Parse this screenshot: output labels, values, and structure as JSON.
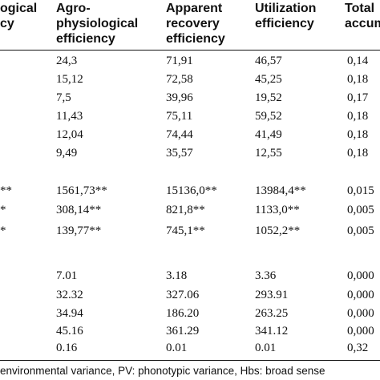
{
  "header": {
    "col0": [
      "ogical",
      "cy"
    ],
    "col1": [
      "Agro-",
      "physiological",
      "efficiency"
    ],
    "col2": [
      "Apparent",
      "recovery",
      "efficiency"
    ],
    "col3": [
      "Utilization",
      "efficiency"
    ],
    "col4": [
      "Total",
      "accum"
    ]
  },
  "rows": [
    {
      "c0": "",
      "c1": "24,3",
      "c2": "71,91",
      "c3": "46,57",
      "c4": "0,14"
    },
    {
      "c0": "",
      "c1": "15,12",
      "c2": "72,58",
      "c3": "45,25",
      "c4": "0,18"
    },
    {
      "c0": "",
      "c1": "7,5",
      "c2": "39,96",
      "c3": "19,52",
      "c4": "0,17"
    },
    {
      "c0": "",
      "c1": "11,43",
      "c2": "75,11",
      "c3": "59,52",
      "c4": "0,18"
    },
    {
      "c0": "",
      "c1": "12,04",
      "c2": "74,44",
      "c3": "41,49",
      "c4": "0,18"
    },
    {
      "c0": "",
      "c1": "9,49",
      "c2": "35,57",
      "c3": "12,55",
      "c4": "0,18"
    },
    {
      "c0": "**",
      "c1": "1561,73**",
      "c2": "15136,0**",
      "c3": "13984,4**",
      "c4": "0,015"
    },
    {
      "c0": "*",
      "c1": "308,14**",
      "c2": "821,8**",
      "c3": "1133,0**",
      "c4": "0,005"
    },
    {
      "c0": "*",
      "c1": "139,77**",
      "c2": "745,1**",
      "c3": "1052,2**",
      "c4": "0,005"
    },
    {
      "c0": "",
      "c1": "7.01",
      "c2": "3.18",
      "c3": "3.36",
      "c4": "0,000"
    },
    {
      "c0": "",
      "c1": "32.32",
      "c2": "327.06",
      "c3": "293.91",
      "c4": "0,000"
    },
    {
      "c0": "",
      "c1": "34.94",
      "c2": "186.20",
      "c3": "263.25",
      "c4": "0,000"
    },
    {
      "c0": "",
      "c1": "45.16",
      "c2": "361.29",
      "c3": "341.12",
      "c4": "0,000"
    },
    {
      "c0": "",
      "c1": "0.16",
      "c2": "0.01",
      "c3": "0.01",
      "c4": "0,32"
    }
  ],
  "footnote": "environmental variance, PV: phonotypic variance, Hbs: broad sense"
}
